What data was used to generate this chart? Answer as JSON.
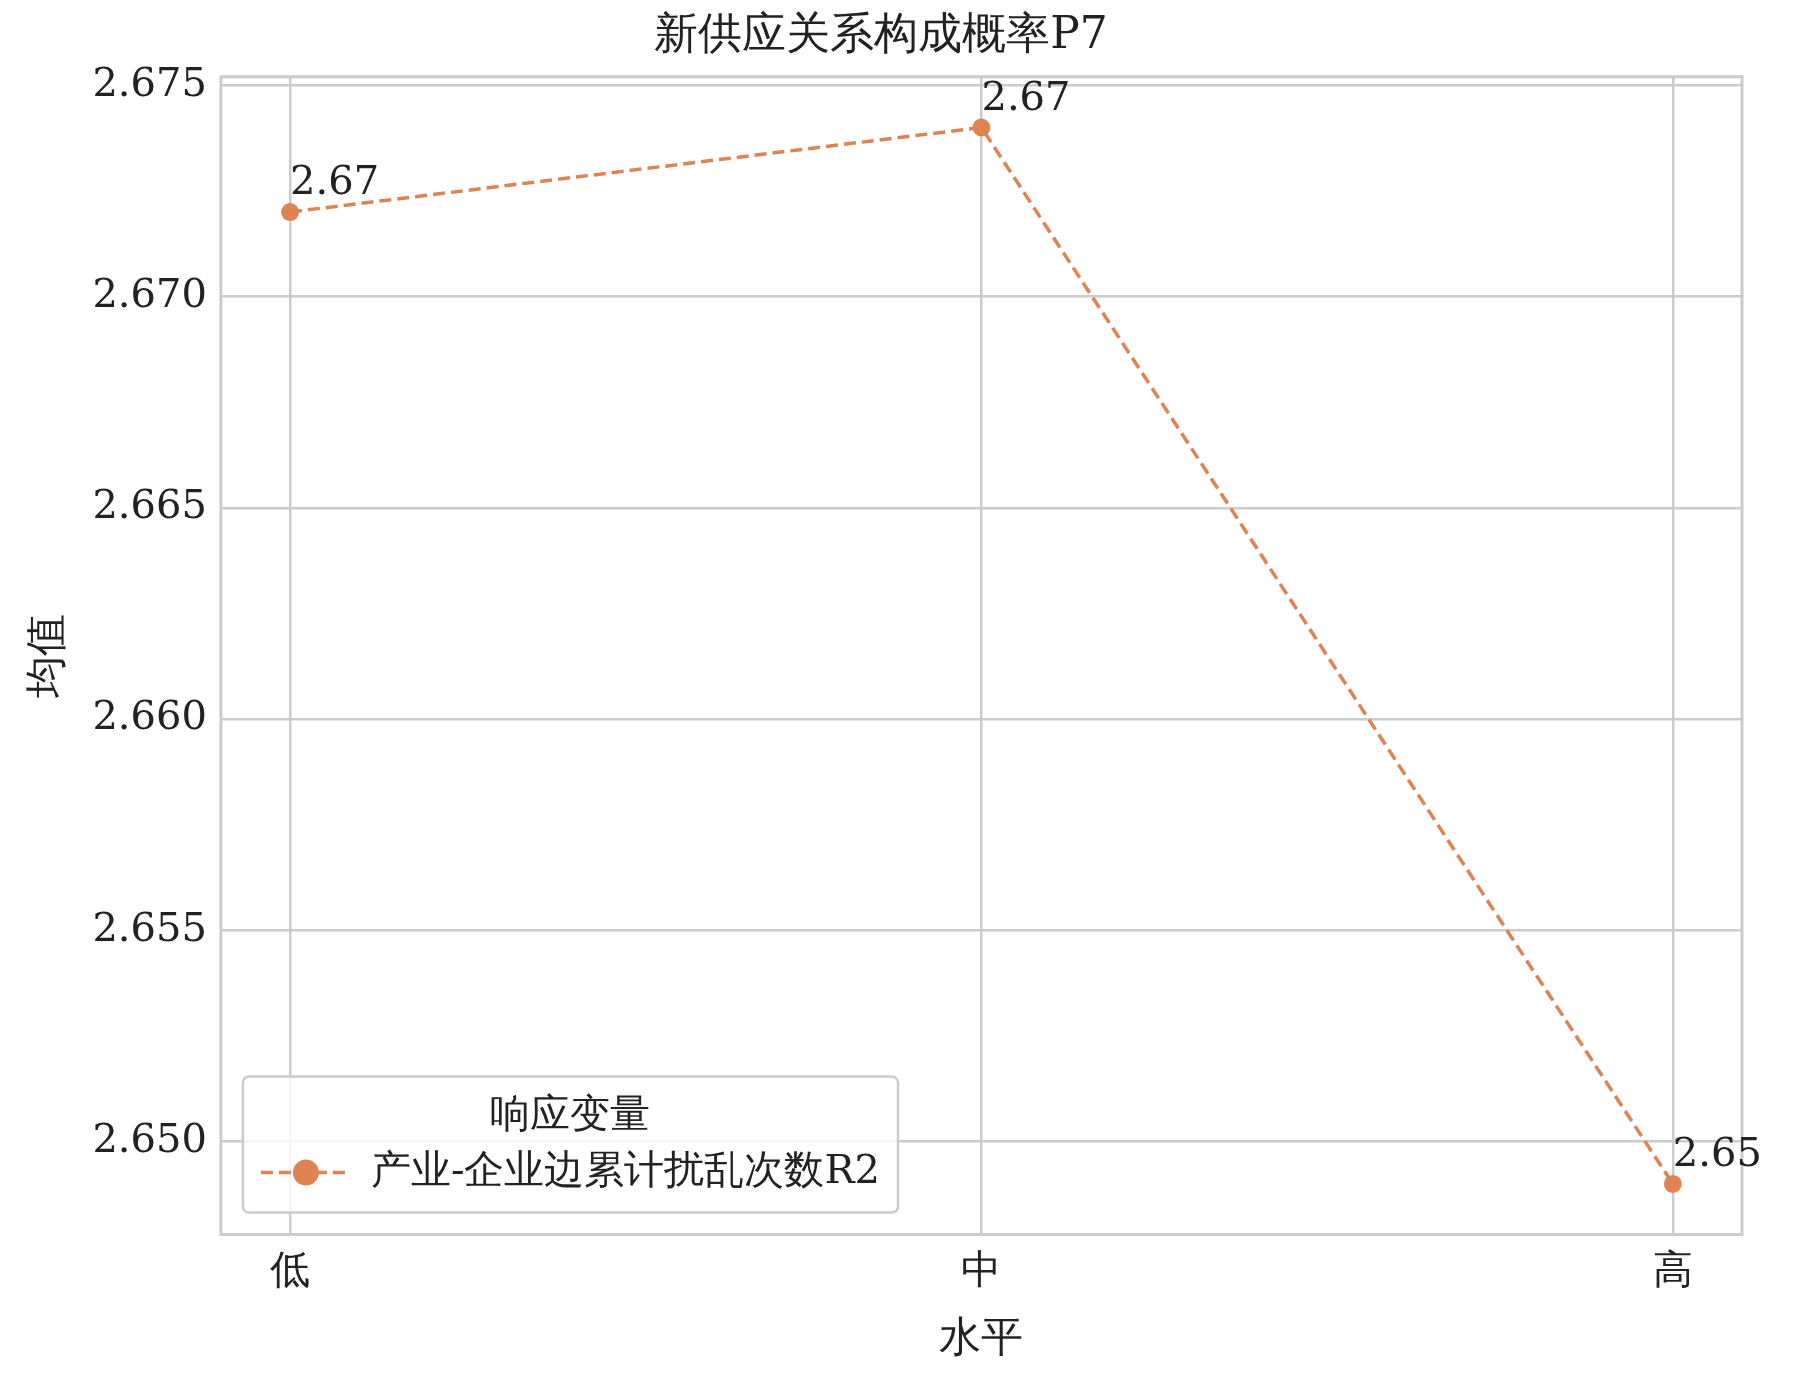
{
  "chart_data": {
    "type": "line",
    "title": "新供应关系构成概率P7",
    "xlabel": "水平",
    "ylabel": "均值",
    "legend_title": "响应变量",
    "categories": [
      "低",
      "中",
      "高"
    ],
    "series": [
      {
        "name": "产业-企业边累计扰乱次数R2",
        "color": "#dd8452",
        "values": [
          2.672,
          2.674,
          2.649
        ],
        "value_labels": [
          "2.67",
          "2.67",
          "2.65"
        ]
      }
    ],
    "ylim": [
      2.6478,
      2.6752
    ],
    "yticks": [
      {
        "value": 2.65,
        "label": "2.650"
      },
      {
        "value": 2.655,
        "label": "2.655"
      },
      {
        "value": 2.66,
        "label": "2.660"
      },
      {
        "value": 2.665,
        "label": "2.665"
      },
      {
        "value": 2.67,
        "label": "2.670"
      },
      {
        "value": 2.675,
        "label": "2.675"
      }
    ],
    "grid": true,
    "legend": "bottom left",
    "marker": "circle",
    "line_style": "dashed"
  }
}
